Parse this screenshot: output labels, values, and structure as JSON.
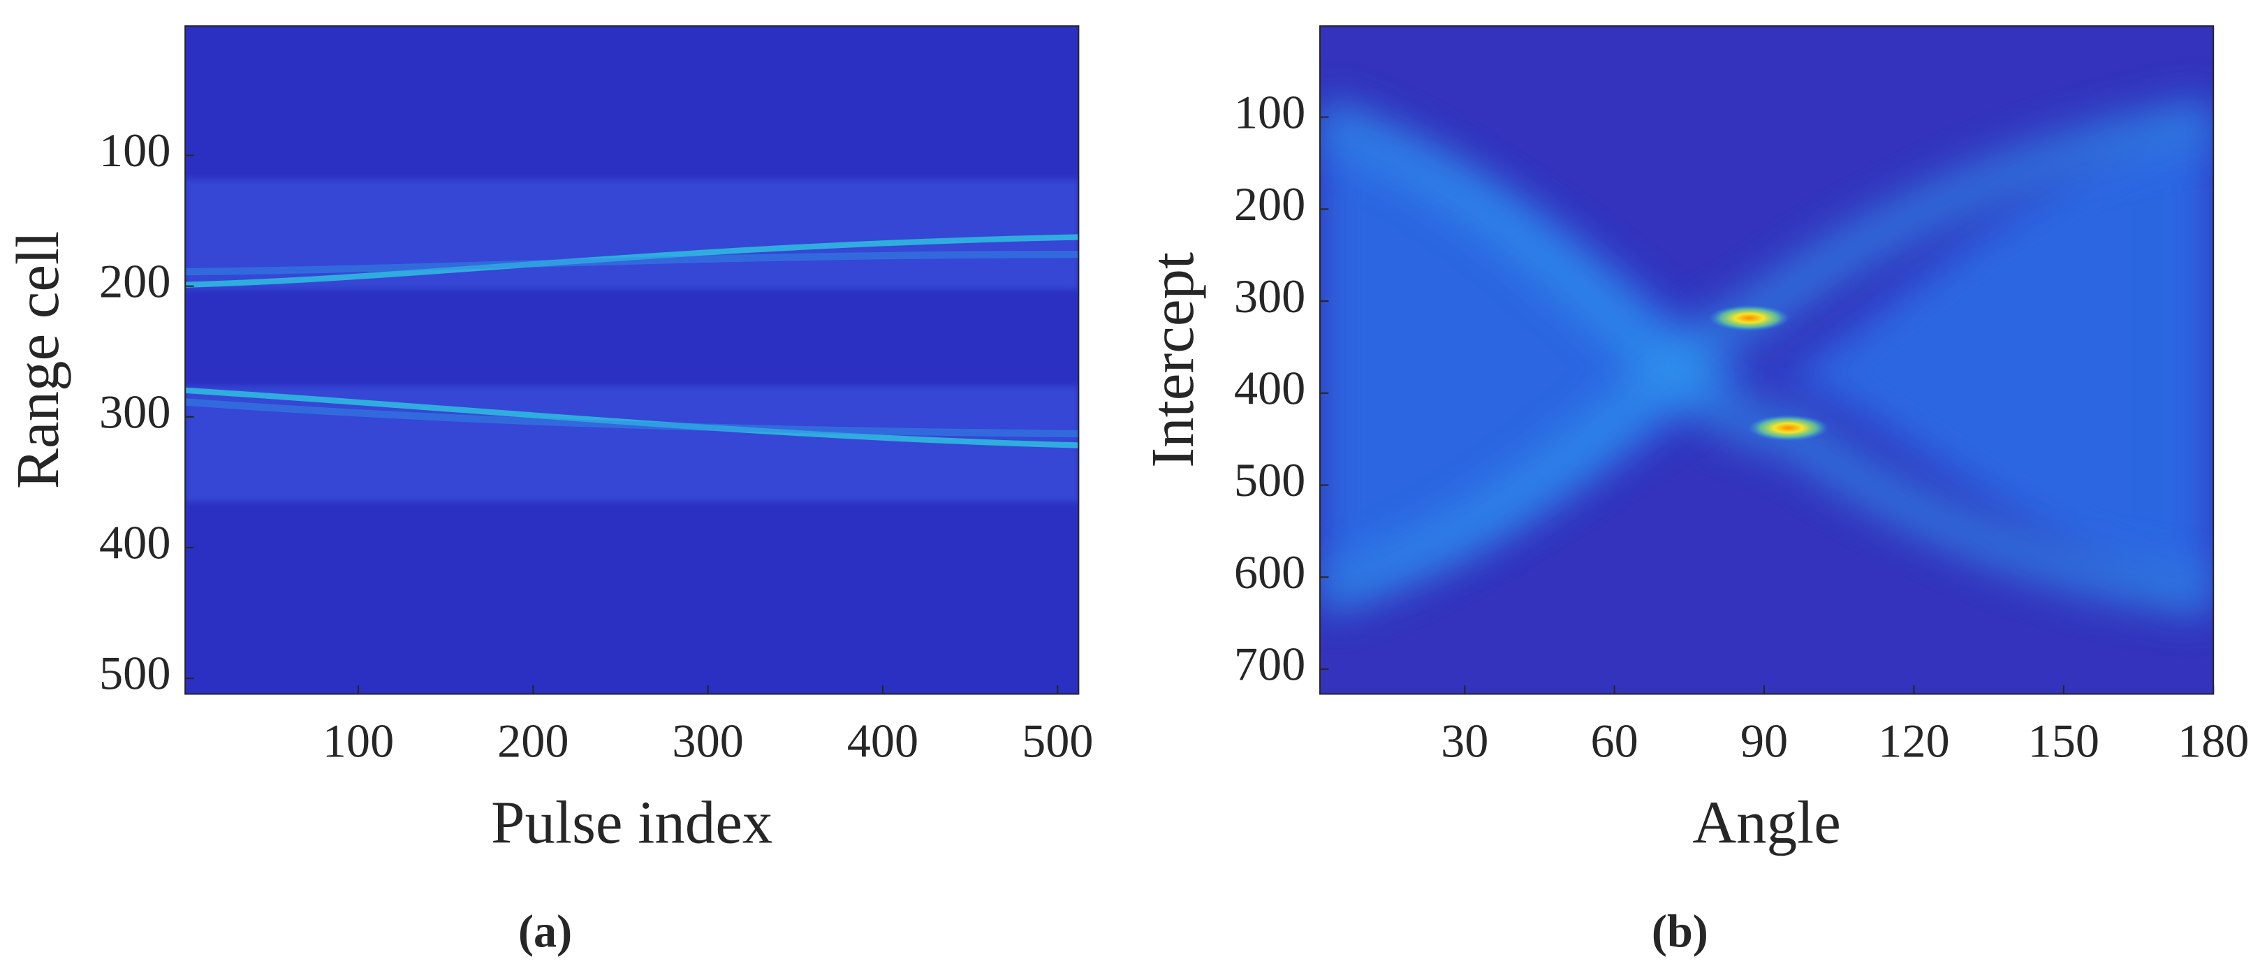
{
  "chart_data": [
    {
      "type": "heatmap",
      "xlabel": "Pulse index",
      "ylabel": "Range cell",
      "caption": "(a)",
      "xlim": [
        1,
        512
      ],
      "ylim": [
        1,
        512
      ],
      "y_reversed": true,
      "xticks": [
        100,
        200,
        300,
        400,
        500
      ],
      "yticks": [
        100,
        200,
        300,
        400,
        500
      ]
    },
    {
      "type": "heatmap",
      "xlabel": "Angle",
      "ylabel": "Intercept",
      "caption": "(b)",
      "xlim": [
        1,
        180
      ],
      "ylim": [
        1,
        727
      ],
      "y_reversed": true,
      "xticks": [
        30,
        60,
        90,
        120,
        150,
        180
      ],
      "yticks": [
        100,
        200,
        300,
        400,
        500,
        600,
        700
      ]
    }
  ]
}
